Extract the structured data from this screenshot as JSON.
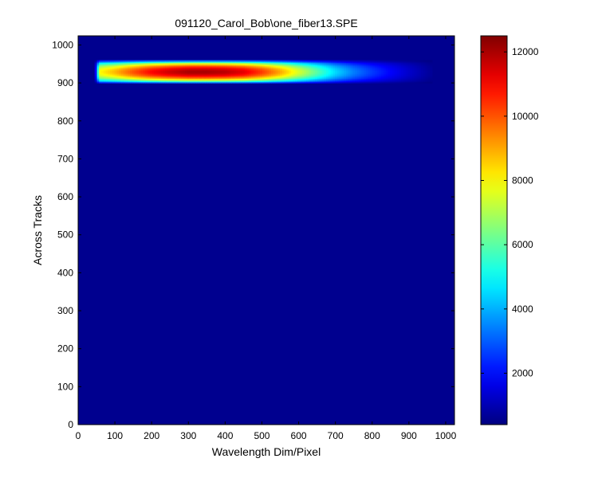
{
  "chart_data": {
    "type": "heatmap",
    "title": "091120_Carol_Bob\\one_fiber13.SPE",
    "xlabel": "Wavelength Dim/Pixel",
    "ylabel": "Across Tracks",
    "xlim": [
      0,
      1024
    ],
    "ylim": [
      0,
      1024
    ],
    "x_ticks": [
      0,
      100,
      200,
      300,
      400,
      500,
      600,
      700,
      800,
      900,
      1000
    ],
    "y_ticks": [
      0,
      100,
      200,
      300,
      400,
      500,
      600,
      700,
      800,
      900,
      1000
    ],
    "grid": false,
    "colormap": "jet",
    "colorbar": {
      "range": [
        400,
        12500
      ],
      "ticks": [
        2000,
        4000,
        6000,
        8000,
        10000,
        12000
      ]
    },
    "background_value": 400,
    "feature": {
      "x_range": [
        45,
        960
      ],
      "y_range": [
        900,
        960
      ],
      "profile_x": [
        45,
        60,
        100,
        150,
        200,
        250,
        300,
        350,
        400,
        450,
        500,
        550,
        600,
        650,
        700,
        750,
        800,
        850,
        900,
        960
      ],
      "profile_peak": [
        6000,
        8000,
        8800,
        10000,
        11000,
        11600,
        12000,
        12000,
        11800,
        11300,
        10300,
        9000,
        7500,
        6000,
        4500,
        3400,
        2600,
        1900,
        1300,
        700
      ]
    }
  },
  "colors": {
    "background": "#00008f",
    "axes": "#000000"
  }
}
